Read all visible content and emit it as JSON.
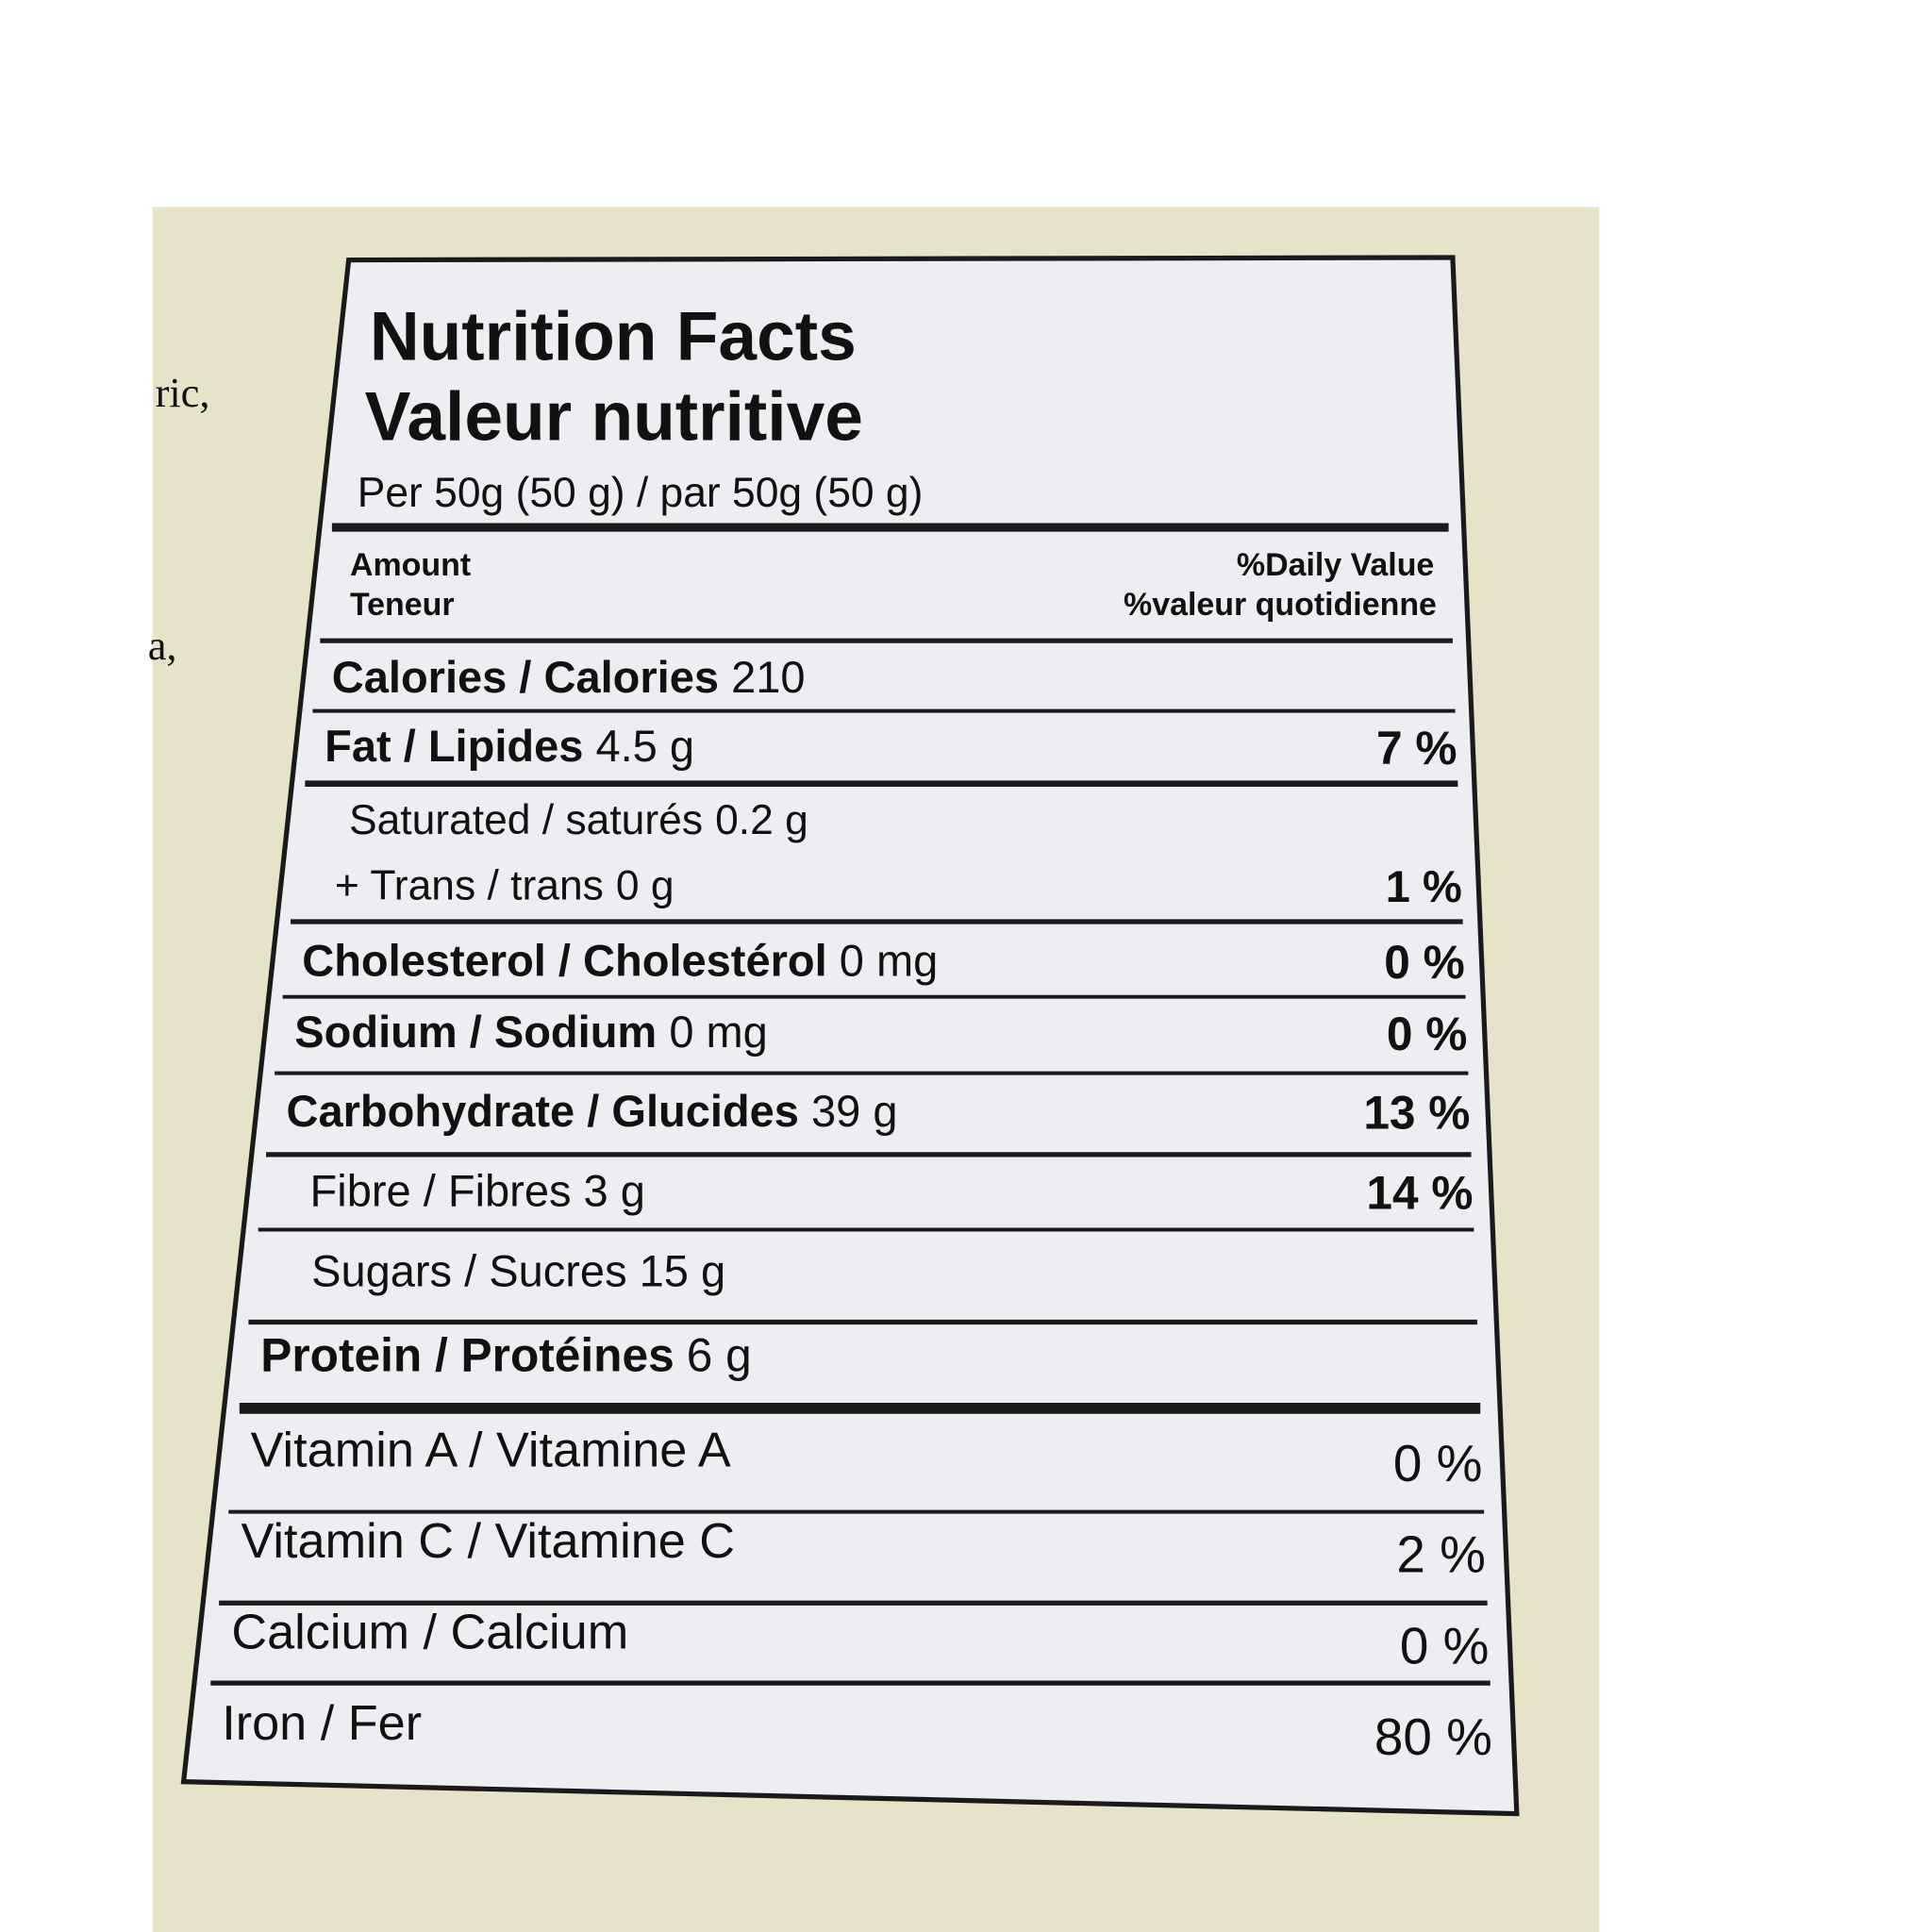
{
  "side_text": [
    "ric,",
    "a,"
  ],
  "label": {
    "title": "Nutrition Facts",
    "title_fr": "Valeur nutritive",
    "serving": "Per 50g (50 g) / par 50g (50 g)",
    "header": {
      "amount": "Amount",
      "amount_fr": "Teneur",
      "dv": "%Daily Value",
      "dv_fr": "%valeur quotidienne"
    },
    "rows": [
      {
        "name": "Calories / Calories",
        "amount": "210"
      },
      {
        "name": "Fat / Lipides",
        "amount": "4.5 g",
        "dv": "7 %"
      },
      {
        "name": "Saturated / saturés",
        "amount": "0.2 g"
      },
      {
        "name": "+ Trans / trans",
        "amount": "0 g",
        "dv": "1 %"
      },
      {
        "name": "Cholesterol / Cholestérol",
        "amount": "0 mg",
        "dv": "0 %"
      },
      {
        "name": "Sodium / Sodium",
        "amount": "0 mg",
        "dv": "0 %"
      },
      {
        "name": "Carbohydrate / Glucides",
        "amount": "39 g",
        "dv": "13 %"
      },
      {
        "name": "Fibre / Fibres",
        "amount": "3 g",
        "dv": "14 %"
      },
      {
        "name": "Sugars / Sucres",
        "amount": "15 g"
      },
      {
        "name": "Protein / Protéines",
        "amount": "6 g"
      },
      {
        "name": "Vitamin A / Vitamine A",
        "dv": "0 %"
      },
      {
        "name": "Vitamin C / Vitamine C",
        "dv": "2 %"
      },
      {
        "name": "Calcium / Calcium",
        "dv": "0 %"
      },
      {
        "name": "Iron / Fer",
        "dv": "80 %"
      }
    ]
  }
}
